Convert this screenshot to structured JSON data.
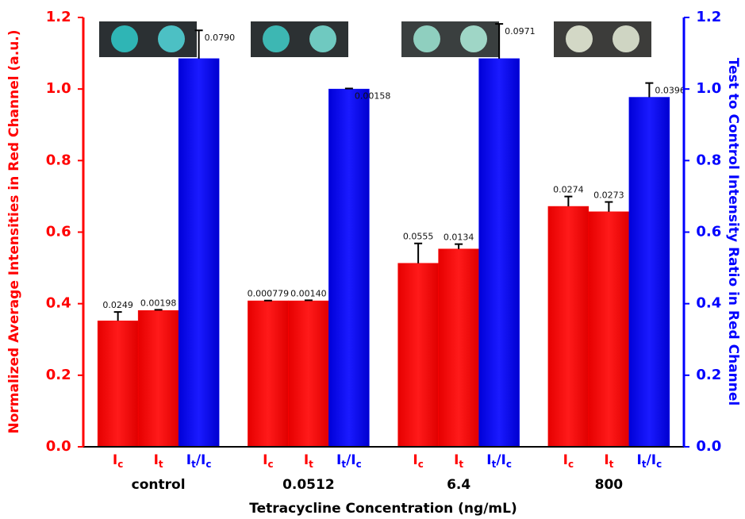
{
  "chart_data": {
    "type": "bar",
    "x_label": "Tetracycline Concentration (ng/mL)",
    "y_label": "Normalized Average Intensities in Red Channel (a.u.)",
    "y2_label": "Test to Control Intensity Ratio in Red Channel",
    "categories": [
      "control",
      "0.0512",
      "6.4",
      "800"
    ],
    "ylim": [
      0,
      1.2
    ],
    "yticks": [
      {
        "value": 0,
        "label": "0.0"
      },
      0.2,
      0.4,
      0.6,
      0.8,
      {
        "value": 1,
        "label": "1.0"
      },
      1.2
    ],
    "y2lim": [
      0,
      1.2
    ],
    "y2ticks": [
      {
        "value": 0,
        "label": "0.0"
      },
      0.2,
      0.4,
      0.6,
      0.8,
      {
        "value": 1,
        "label": "1.0"
      },
      1.2
    ],
    "y_color": "#ff0000",
    "y2_color": "#0000ff",
    "series": [
      {
        "name": [
          "I",
          "c"
        ],
        "color": "#ff0000",
        "values": [
          0.352,
          0.408,
          0.513,
          0.672
        ],
        "errors": [
          0.0249,
          0.000779,
          0.0555,
          0.0274
        ],
        "error_labels": [
          "0.0249",
          "0.000779",
          "0.0555",
          "0.0274"
        ]
      },
      {
        "name": [
          "I",
          "t"
        ],
        "color": "#ff0000",
        "values": [
          0.381,
          0.408,
          0.553,
          0.657
        ],
        "errors": [
          0.00198,
          0.0014,
          0.0134,
          0.0273
        ],
        "error_labels": [
          "0.00198",
          "0.00140",
          "0.0134",
          "0.0273"
        ]
      },
      {
        "name": [
          "I",
          "t",
          "/I",
          "c"
        ],
        "color": "#0000ff",
        "axis": "y2",
        "values": [
          1.085,
          1.0,
          1.085,
          0.977
        ],
        "errors": [
          0.079,
          0.00158,
          0.0971,
          0.0396
        ],
        "error_labels": [
          "0.0790",
          "0.00158",
          "0.0971",
          "0.0396"
        ]
      }
    ]
  }
}
